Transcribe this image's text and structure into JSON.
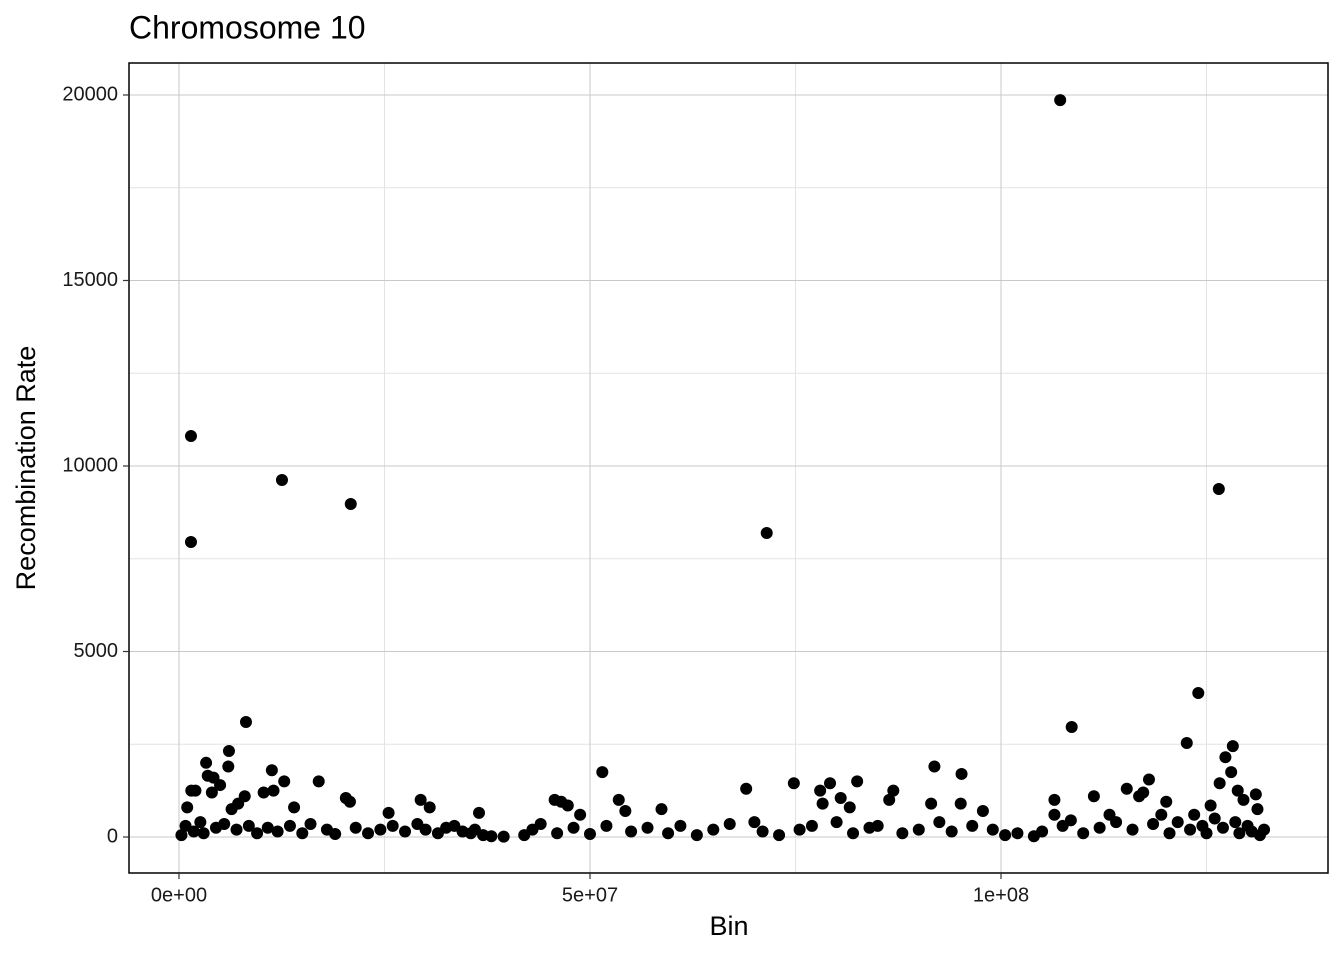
{
  "chart_data": {
    "type": "scatter",
    "title": "Chromosome 10",
    "x_label": "Bin",
    "y_label": "Recombination Rate",
    "color": "#000000",
    "grid": true,
    "xlim": [
      -6080000,
      139780000
    ],
    "ylim": [
      -970,
      20862
    ],
    "xticks": [
      {
        "value": 0,
        "label": "0e+00"
      },
      {
        "value": 50000000,
        "label": "5e+07"
      },
      {
        "value": 100000000,
        "label": "1e+08"
      }
    ],
    "yticks": [
      0,
      5000,
      10000,
      15000,
      20000
    ],
    "x_minor_grid": [
      25000000,
      75000000,
      125000000
    ],
    "y_minor_grid": [
      2500,
      7500,
      12500,
      17500
    ],
    "x": [
      1460000,
      1460000,
      12530000,
      20900000,
      71500000,
      107200000,
      126500000,
      124000000,
      108600000,
      122600000,
      8150000,
      6080000,
      3300000,
      1000000,
      1500000,
      2000000,
      3500000,
      4200000,
      4000000,
      5000000,
      6000000,
      6400000,
      7200000,
      8000000,
      10300000,
      11300000,
      11500000,
      12800000,
      14000000,
      17000000,
      20300000,
      20800000,
      25500000,
      29400000,
      30500000,
      36500000,
      45700000,
      46500000,
      47300000,
      48800000,
      51500000,
      53500000,
      54300000,
      58700000,
      69000000,
      74800000,
      78000000,
      78300000,
      79200000,
      80500000,
      81600000,
      82500000,
      86400000,
      86900000,
      91500000,
      91900000,
      95200000,
      95100000,
      97800000,
      106500000,
      106500000,
      111300000,
      113200000,
      115300000,
      116800000,
      117300000,
      118000000,
      119500000,
      120100000,
      125500000,
      126600000,
      127300000,
      128000000,
      128200000,
      128800000,
      129500000,
      131000000,
      131200000,
      123500000,
      300000,
      800000,
      1800000,
      2600000,
      3000000,
      4500000,
      5500000,
      7000000,
      8500000,
      9500000,
      10800000,
      12000000,
      13500000,
      15000000,
      16000000,
      18000000,
      19000000,
      21500000,
      23000000,
      24500000,
      26000000,
      27500000,
      29000000,
      30000000,
      31500000,
      32500000,
      33500000,
      34500000,
      35500000,
      36000000,
      37000000,
      38000000,
      39500000,
      42000000,
      43000000,
      44000000,
      46000000,
      48000000,
      50000000,
      52000000,
      55000000,
      57000000,
      59500000,
      61000000,
      63000000,
      65000000,
      67000000,
      70000000,
      71000000,
      73000000,
      75500000,
      77000000,
      80000000,
      82000000,
      84000000,
      85000000,
      88000000,
      90000000,
      92500000,
      94000000,
      96500000,
      99000000,
      100500000,
      102000000,
      104000000,
      105000000,
      107500000,
      108500000,
      110000000,
      112000000,
      114000000,
      116000000,
      118500000,
      120500000,
      121500000,
      123000000,
      124500000,
      125000000,
      126000000,
      127000000,
      128500000,
      129000000,
      130000000,
      130500000,
      131500000,
      132000000
    ],
    "values": [
      10807,
      7950,
      9622,
      8975,
      8193,
      19862,
      9379,
      3881,
      2965,
      2533,
      3100,
      2318,
      2000,
      800,
      1250,
      1250,
      1650,
      1600,
      1200,
      1400,
      1900,
      750,
      900,
      1100,
      1200,
      1800,
      1250,
      1500,
      800,
      1500,
      1050,
      950,
      650,
      1000,
      800,
      650,
      1000,
      950,
      850,
      600,
      1750,
      1000,
      700,
      750,
      1300,
      1450,
      1250,
      900,
      1450,
      1050,
      800,
      1500,
      1000,
      1250,
      900,
      1900,
      1700,
      900,
      700,
      1000,
      600,
      1100,
      600,
      1300,
      1100,
      1200,
      1550,
      600,
      950,
      850,
      1450,
      2150,
      1750,
      2450,
      1250,
      1000,
      1150,
      750,
      600,
      50,
      300,
      150,
      400,
      100,
      250,
      350,
      200,
      300,
      100,
      250,
      150,
      300,
      100,
      350,
      200,
      80,
      250,
      100,
      200,
      300,
      150,
      350,
      200,
      100,
      250,
      300,
      150,
      100,
      200,
      50,
      20,
      10,
      50,
      200,
      350,
      100,
      250,
      80,
      300,
      150,
      250,
      100,
      300,
      50,
      200,
      350,
      400,
      150,
      50,
      200,
      300,
      400,
      100,
      250,
      300,
      100,
      200,
      400,
      150,
      300,
      200,
      50,
      100,
      20,
      150,
      300,
      450,
      100,
      250,
      400,
      200,
      350,
      100,
      400,
      200,
      300,
      100,
      500,
      250,
      400,
      100,
      300,
      150,
      50,
      200
    ]
  }
}
